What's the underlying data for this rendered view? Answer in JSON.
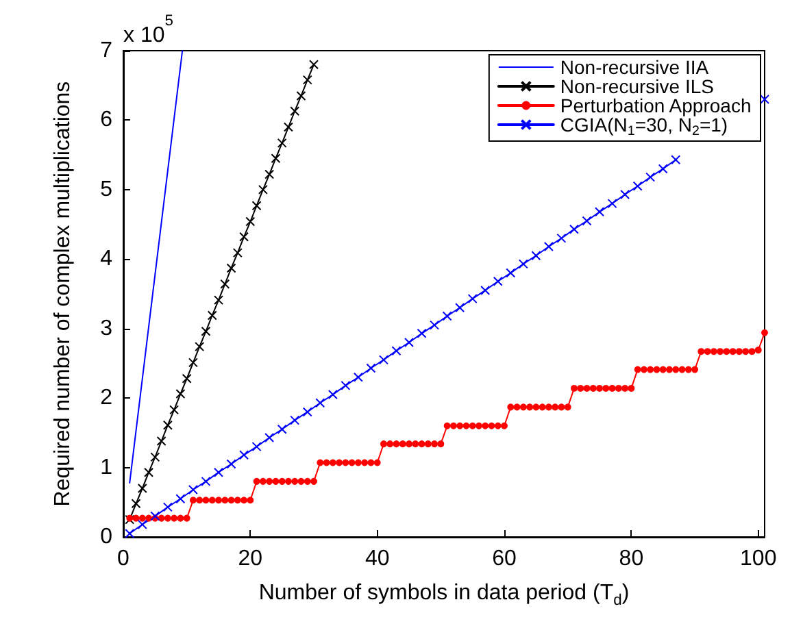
{
  "chart_data": {
    "type": "line",
    "xlabel": "Number of symbols in data period (T$_{d}$)",
    "ylabel": "Required number of complex multiplications",
    "annotations": [
      "x 10$^{5}$"
    ],
    "xlim": [
      0,
      101
    ],
    "xticks": [
      0,
      20,
      40,
      60,
      80,
      100
    ],
    "ylim": [
      0,
      7
    ],
    "yticks": [
      0,
      1,
      2,
      3,
      4,
      5,
      6,
      7
    ],
    "grid": false,
    "legend": "top right",
    "line_style": "solid",
    "series": [
      {
        "name": "Non-recursive IIA",
        "color": "#0000ff",
        "marker": "none",
        "x": [
          1,
          9.3
        ],
        "values": [
          0.78,
          7.0
        ]
      },
      {
        "name": "Non-recursive ILS",
        "color": "#000000",
        "marker": "cross",
        "x": [
          1,
          2,
          3,
          4,
          5,
          6,
          7,
          8,
          9,
          10,
          11,
          12,
          13,
          14,
          15,
          16,
          17,
          18,
          19,
          20,
          21,
          22,
          23,
          24,
          25,
          26,
          27,
          28,
          29,
          30
        ],
        "values": [
          0.25,
          0.48,
          0.7,
          0.93,
          1.15,
          1.38,
          1.61,
          1.83,
          2.06,
          2.28,
          2.51,
          2.74,
          2.96,
          3.19,
          3.41,
          3.64,
          3.87,
          4.09,
          4.32,
          4.54,
          4.77,
          5.0,
          5.22,
          5.45,
          5.67,
          5.9,
          6.13,
          6.35,
          6.58,
          6.8
        ]
      },
      {
        "name": "Perturbation Approach",
        "color": "#ff0000",
        "marker": "circle",
        "x": [
          1,
          2,
          3,
          4,
          5,
          6,
          7,
          8,
          9,
          10,
          11,
          12,
          13,
          14,
          15,
          16,
          17,
          18,
          19,
          20,
          21,
          22,
          23,
          24,
          25,
          26,
          27,
          28,
          29,
          30,
          31,
          32,
          33,
          34,
          35,
          36,
          37,
          38,
          39,
          40,
          41,
          42,
          43,
          44,
          45,
          46,
          47,
          48,
          49,
          50,
          51,
          52,
          53,
          54,
          55,
          56,
          57,
          58,
          59,
          60,
          61,
          62,
          63,
          64,
          65,
          66,
          67,
          68,
          69,
          70,
          71,
          72,
          73,
          74,
          75,
          76,
          77,
          78,
          79,
          80,
          81,
          82,
          83,
          84,
          85,
          86,
          87,
          88,
          89,
          90,
          91,
          92,
          93,
          94,
          95,
          96,
          97,
          98,
          99,
          100,
          101
        ],
        "values": [
          0.27,
          0.27,
          0.27,
          0.27,
          0.27,
          0.27,
          0.27,
          0.27,
          0.27,
          0.27,
          0.53,
          0.53,
          0.53,
          0.53,
          0.53,
          0.53,
          0.53,
          0.53,
          0.53,
          0.53,
          0.8,
          0.8,
          0.8,
          0.8,
          0.8,
          0.8,
          0.8,
          0.8,
          0.8,
          0.8,
          1.07,
          1.07,
          1.07,
          1.07,
          1.07,
          1.07,
          1.07,
          1.07,
          1.07,
          1.07,
          1.34,
          1.34,
          1.34,
          1.34,
          1.34,
          1.34,
          1.34,
          1.34,
          1.34,
          1.34,
          1.6,
          1.6,
          1.6,
          1.6,
          1.6,
          1.6,
          1.6,
          1.6,
          1.6,
          1.6,
          1.87,
          1.87,
          1.87,
          1.87,
          1.87,
          1.87,
          1.87,
          1.87,
          1.87,
          1.87,
          2.14,
          2.14,
          2.14,
          2.14,
          2.14,
          2.14,
          2.14,
          2.14,
          2.14,
          2.14,
          2.41,
          2.41,
          2.41,
          2.41,
          2.41,
          2.41,
          2.41,
          2.41,
          2.41,
          2.41,
          2.67,
          2.67,
          2.67,
          2.67,
          2.67,
          2.67,
          2.67,
          2.67,
          2.67,
          2.69,
          2.94
        ]
      },
      {
        "name": "CGIA(N$_{1}$=30, N$_{2}$=1)",
        "color": "#0000ff",
        "marker": "cross",
        "x": [
          1,
          3,
          5,
          7,
          9,
          11,
          13,
          15,
          17,
          19,
          21,
          23,
          25,
          27,
          29,
          31,
          33,
          35,
          37,
          39,
          41,
          43,
          45,
          47,
          49,
          51,
          53,
          55,
          57,
          59,
          61,
          63,
          65,
          67,
          69,
          71,
          73,
          75,
          77,
          79,
          81,
          83,
          85,
          87,
          89,
          91,
          93,
          95,
          97,
          99,
          101
        ],
        "values": [
          0.05,
          0.18,
          0.3,
          0.43,
          0.55,
          0.68,
          0.8,
          0.93,
          1.05,
          1.18,
          1.3,
          1.43,
          1.55,
          1.68,
          1.8,
          1.93,
          2.05,
          2.18,
          2.3,
          2.43,
          2.55,
          2.68,
          2.8,
          2.93,
          3.05,
          3.18,
          3.3,
          3.43,
          3.55,
          3.68,
          3.8,
          3.93,
          4.05,
          4.18,
          4.3,
          4.43,
          4.55,
          4.68,
          4.8,
          4.93,
          5.05,
          5.18,
          5.3,
          5.43,
          null,
          null,
          null,
          null,
          null,
          null,
          6.3
        ]
      }
    ]
  }
}
